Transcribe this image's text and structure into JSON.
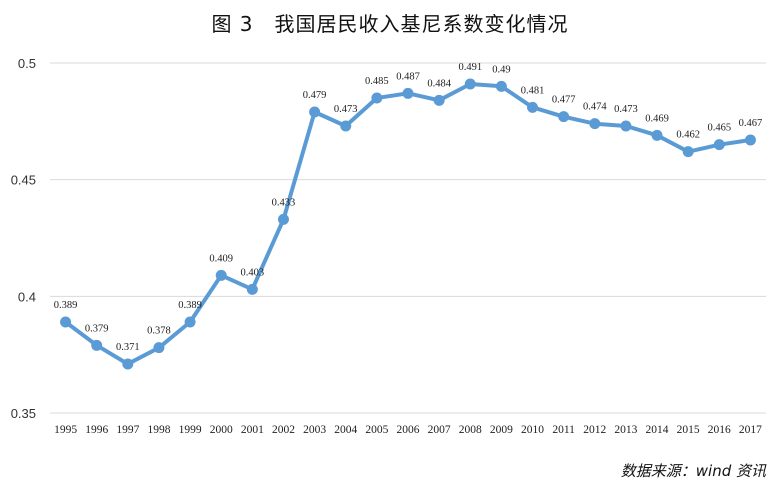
{
  "title": "图 3　我国居民收入基尼系数变化情况",
  "source": "数据来源：wind 资讯",
  "chart_data": {
    "type": "line",
    "title": "图 3　我国居民收入基尼系数变化情况",
    "xlabel": "",
    "ylabel": "",
    "categories": [
      "1995",
      "1996",
      "1997",
      "1998",
      "1999",
      "2000",
      "2001",
      "2002",
      "2003",
      "2004",
      "2005",
      "2006",
      "2007",
      "2008",
      "2009",
      "2010",
      "2011",
      "2012",
      "2013",
      "2014",
      "2015",
      "2016",
      "2017"
    ],
    "values": [
      0.389,
      0.379,
      0.371,
      0.378,
      0.389,
      0.409,
      0.403,
      0.433,
      0.479,
      0.473,
      0.485,
      0.487,
      0.484,
      0.491,
      0.49,
      0.481,
      0.477,
      0.474,
      0.473,
      0.469,
      0.462,
      0.465,
      0.467
    ],
    "value_labels": [
      "0.389",
      "0.379",
      "0.371",
      "0.378",
      "0.389",
      "0.409",
      "0.403",
      "0.433",
      "0.479",
      "0.473",
      "0.485",
      "0.487",
      "0.484",
      "0.491",
      "0.49",
      "0.481",
      "0.477",
      "0.474",
      "0.473",
      "0.469",
      "0.462",
      "0.465",
      "0.467"
    ],
    "ylim": [
      0.35,
      0.5
    ],
    "yticks": [
      "0.35",
      "0.4",
      "0.45",
      "0.5"
    ],
    "ytick_values": [
      0.35,
      0.4,
      0.45,
      0.5
    ],
    "grid": true,
    "legend": "none",
    "color": "#5b9bd5"
  }
}
